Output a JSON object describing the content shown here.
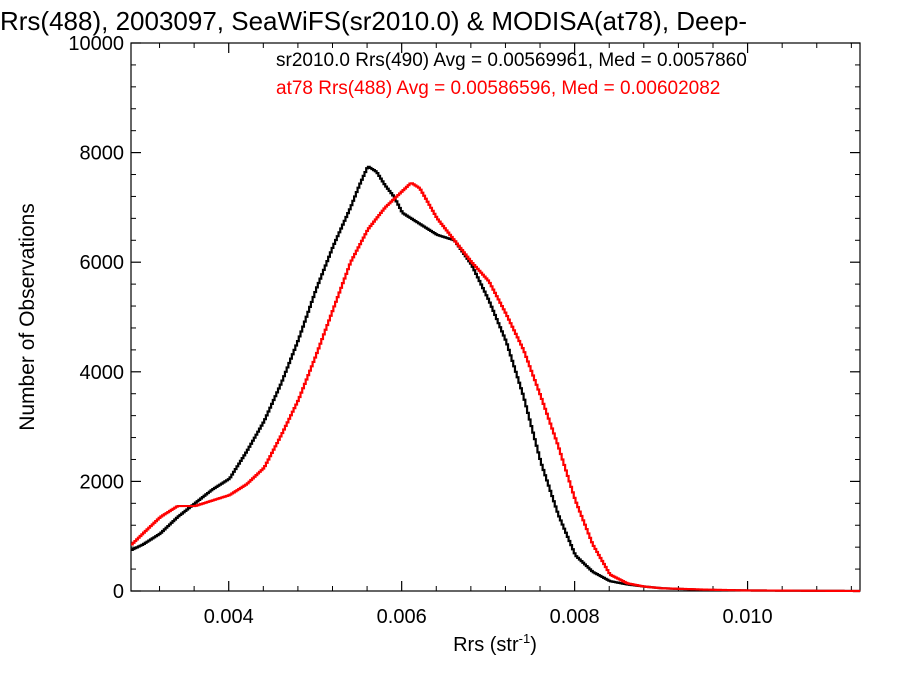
{
  "chart_data": {
    "type": "line",
    "title": "Rrs(488), 2003097, SeaWiFS(sr2010.0) & MODISA(at78), Deep-",
    "xlabel_main": "Rrs (str",
    "xlabel_sup": "-1",
    "xlabel_close": ")",
    "ylabel": "Number of Observations",
    "xlim": [
      0.00287,
      0.0113
    ],
    "ylim": [
      0,
      10000
    ],
    "x_ticks": [
      0.004,
      0.006,
      0.008,
      0.01
    ],
    "x_tick_labels": [
      "0.004",
      "0.006",
      "0.008",
      "0.010"
    ],
    "y_ticks": [
      0,
      2000,
      4000,
      6000,
      8000,
      10000
    ],
    "y_tick_labels": [
      "0",
      "2000",
      "4000",
      "6000",
      "8000",
      "10000"
    ],
    "legend": [
      {
        "label": "sr2010.0 Rrs(490) Avg = 0.00569961, Med = 0.0057860",
        "color": "#000000"
      },
      {
        "label": "at78 Rrs(488) Avg = 0.00586596, Med = 0.00602082",
        "color": "#ff0000"
      }
    ],
    "series": [
      {
        "name": "sr2010.0 Rrs(490)",
        "color": "#000000",
        "points": [
          [
            0.00287,
            750
          ],
          [
            0.003,
            850
          ],
          [
            0.0032,
            1050
          ],
          [
            0.0034,
            1350
          ],
          [
            0.0036,
            1600
          ],
          [
            0.0038,
            1850
          ],
          [
            0.004,
            2050
          ],
          [
            0.0042,
            2550
          ],
          [
            0.0044,
            3100
          ],
          [
            0.0046,
            3800
          ],
          [
            0.0048,
            4600
          ],
          [
            0.005,
            5500
          ],
          [
            0.0052,
            6300
          ],
          [
            0.0054,
            7000
          ],
          [
            0.0055,
            7400
          ],
          [
            0.0056,
            7750
          ],
          [
            0.0057,
            7650
          ],
          [
            0.0058,
            7400
          ],
          [
            0.0059,
            7200
          ],
          [
            0.006,
            6900
          ],
          [
            0.0062,
            6700
          ],
          [
            0.0064,
            6500
          ],
          [
            0.0066,
            6400
          ],
          [
            0.0068,
            5950
          ],
          [
            0.007,
            5300
          ],
          [
            0.0072,
            4550
          ],
          [
            0.0074,
            3550
          ],
          [
            0.0076,
            2350
          ],
          [
            0.0078,
            1400
          ],
          [
            0.008,
            650
          ],
          [
            0.0082,
            350
          ],
          [
            0.0084,
            180
          ],
          [
            0.0086,
            120
          ],
          [
            0.0088,
            80
          ],
          [
            0.009,
            50
          ],
          [
            0.0095,
            20
          ],
          [
            0.01,
            10
          ],
          [
            0.0113,
            0
          ]
        ]
      },
      {
        "name": "at78 Rrs(488)",
        "color": "#ff0000",
        "points": [
          [
            0.00287,
            850
          ],
          [
            0.003,
            1050
          ],
          [
            0.0032,
            1350
          ],
          [
            0.0034,
            1550
          ],
          [
            0.0036,
            1550
          ],
          [
            0.0038,
            1650
          ],
          [
            0.004,
            1750
          ],
          [
            0.0042,
            1950
          ],
          [
            0.0044,
            2250
          ],
          [
            0.0046,
            2850
          ],
          [
            0.0048,
            3500
          ],
          [
            0.005,
            4300
          ],
          [
            0.0052,
            5150
          ],
          [
            0.0054,
            6000
          ],
          [
            0.0056,
            6600
          ],
          [
            0.0058,
            7000
          ],
          [
            0.006,
            7300
          ],
          [
            0.0061,
            7450
          ],
          [
            0.0062,
            7350
          ],
          [
            0.0064,
            6800
          ],
          [
            0.0066,
            6400
          ],
          [
            0.0068,
            6000
          ],
          [
            0.007,
            5650
          ],
          [
            0.0072,
            5050
          ],
          [
            0.0074,
            4400
          ],
          [
            0.0076,
            3550
          ],
          [
            0.0078,
            2650
          ],
          [
            0.008,
            1650
          ],
          [
            0.0082,
            850
          ],
          [
            0.0084,
            300
          ],
          [
            0.0086,
            140
          ],
          [
            0.0088,
            80
          ],
          [
            0.009,
            50
          ],
          [
            0.0095,
            25
          ],
          [
            0.01,
            10
          ],
          [
            0.0113,
            0
          ]
        ]
      }
    ]
  }
}
